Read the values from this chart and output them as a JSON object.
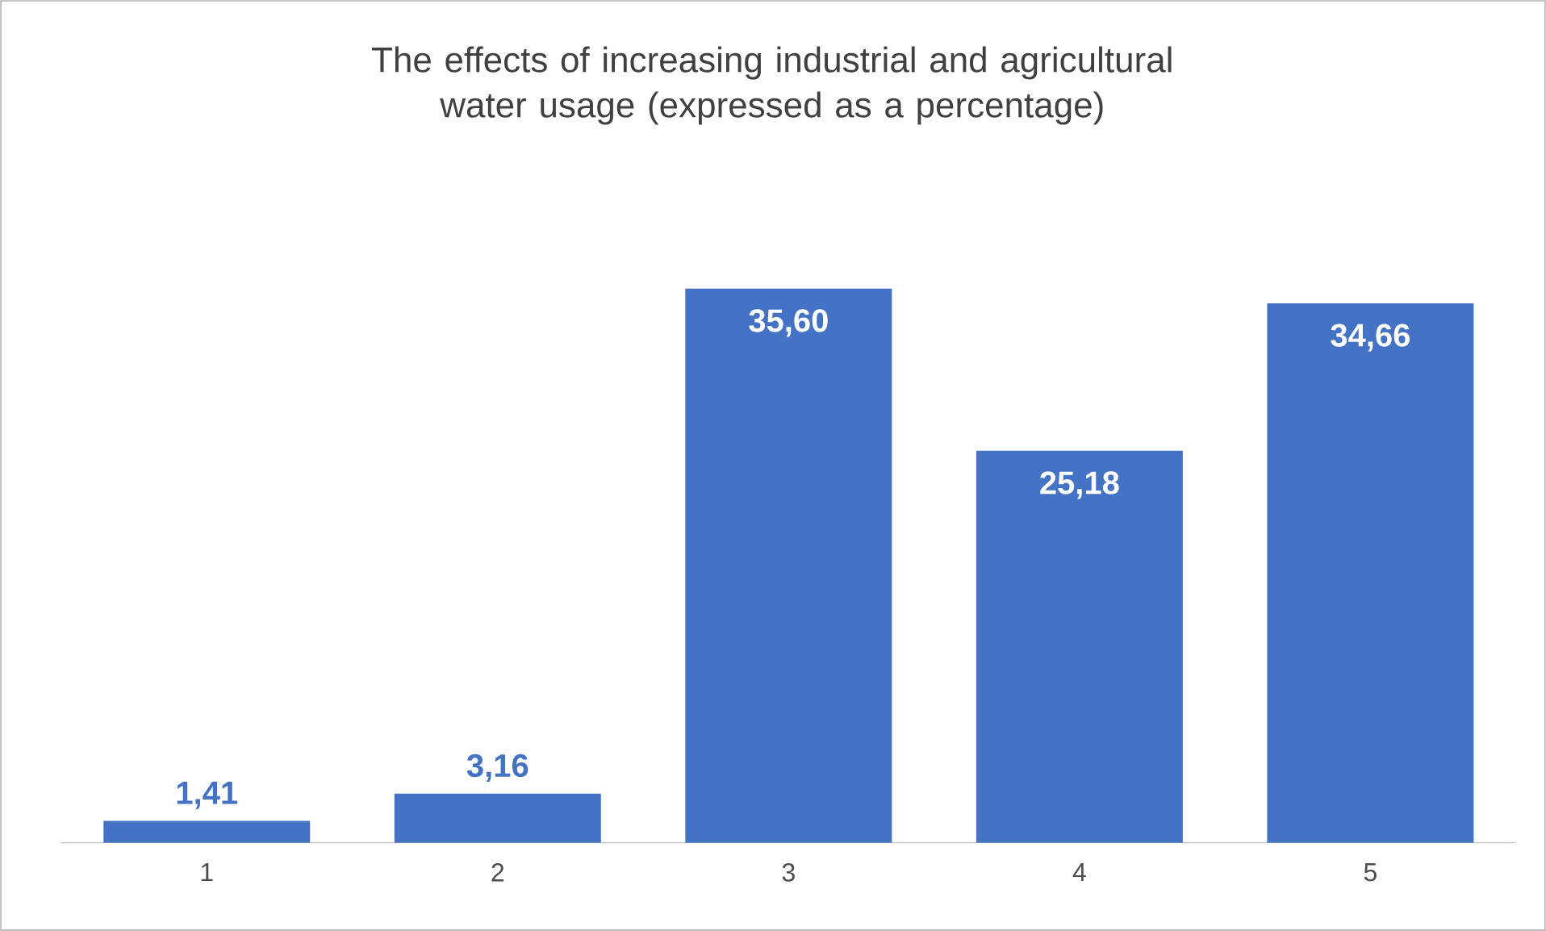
{
  "chart_data": {
    "type": "bar",
    "title": "The effects of increasing industrial and agricultural water usage (expressed as a percentage)",
    "categories": [
      "1",
      "2",
      "3",
      "4",
      "5"
    ],
    "values": [
      1.41,
      3.16,
      35.6,
      25.18,
      34.66
    ],
    "value_labels": [
      "1,41",
      "3,16",
      "35,60",
      "25,18",
      "34,66"
    ],
    "color": "#4472c4"
  }
}
